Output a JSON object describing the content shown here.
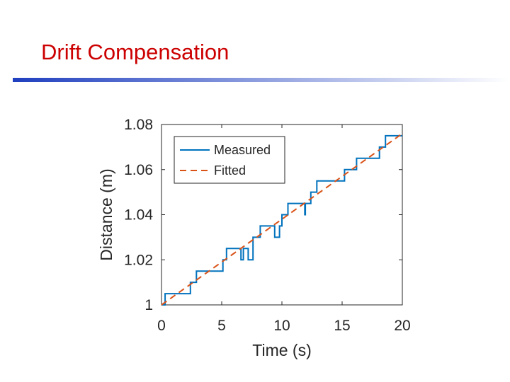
{
  "slide": {
    "title": "Drift Compensation",
    "title_color": "#cc0000",
    "bar_color_start": "#1f3fbf",
    "bar_color_end": "#ffffff"
  },
  "chart_data": {
    "type": "line",
    "title": "",
    "xlabel": "Time (s)",
    "ylabel": "Distance (m)",
    "xlim": [
      0,
      20
    ],
    "ylim": [
      1.0,
      1.08
    ],
    "xticks": [
      0,
      5,
      10,
      15,
      20
    ],
    "xtick_labels": [
      "0",
      "5",
      "10",
      "15",
      "20"
    ],
    "yticks": [
      1.0,
      1.02,
      1.04,
      1.06,
      1.08
    ],
    "ytick_labels": [
      "1",
      "1.02",
      "1.04",
      "1.06",
      "1.08"
    ],
    "grid": false,
    "legend_position": "top-left",
    "series": [
      {
        "name": "Measured",
        "color": "#0072bd",
        "style": "solid",
        "x": [
          0,
          0.3,
          0.3,
          2.4,
          2.4,
          2.9,
          2.9,
          5.1,
          5.1,
          5.4,
          5.4,
          6.6,
          6.6,
          6.8,
          6.8,
          7.2,
          7.2,
          7.6,
          7.6,
          7.8,
          7.8,
          8.2,
          8.2,
          9.4,
          9.4,
          9.8,
          9.8,
          10.0,
          10.0,
          10.5,
          10.5,
          11.9,
          11.9,
          11.95,
          11.95,
          12.0,
          12.0,
          12.4,
          12.4,
          12.9,
          12.9,
          13.4,
          13.4,
          15.2,
          15.2,
          15.6,
          15.6,
          16.2,
          16.2,
          18.1,
          18.1,
          18.6,
          18.6,
          19.0,
          19.0,
          20.0
        ],
        "y": [
          1.0,
          1.0,
          1.005,
          1.005,
          1.01,
          1.01,
          1.015,
          1.015,
          1.02,
          1.02,
          1.025,
          1.025,
          1.02,
          1.02,
          1.025,
          1.025,
          1.02,
          1.02,
          1.03,
          1.03,
          1.03,
          1.03,
          1.035,
          1.035,
          1.03,
          1.03,
          1.035,
          1.035,
          1.04,
          1.04,
          1.045,
          1.045,
          1.04,
          1.04,
          1.045,
          1.045,
          1.045,
          1.045,
          1.05,
          1.05,
          1.055,
          1.055,
          1.055,
          1.055,
          1.06,
          1.06,
          1.06,
          1.06,
          1.065,
          1.065,
          1.07,
          1.07,
          1.075,
          1.075,
          1.075,
          1.075
        ]
      },
      {
        "name": "Fitted",
        "color": "#d95319",
        "style": "dashed",
        "x": [
          0,
          20
        ],
        "y": [
          1.0,
          1.076
        ]
      }
    ]
  }
}
